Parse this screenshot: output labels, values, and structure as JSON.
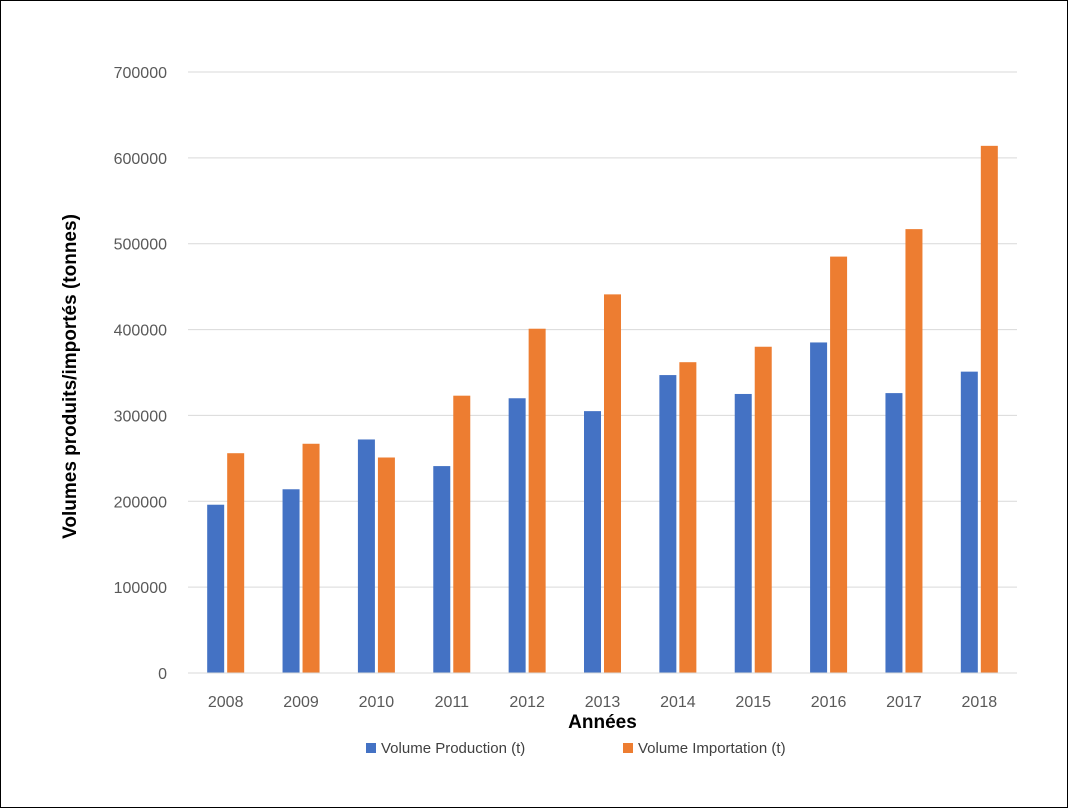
{
  "chart_data": {
    "type": "bar",
    "title": "",
    "xlabel": "Années",
    "ylabel": "Volumes produits/importés (tonnes)",
    "categories": [
      "2008",
      "2009",
      "2010",
      "2011",
      "2012",
      "2013",
      "2014",
      "2015",
      "2016",
      "2017",
      "2018"
    ],
    "series": [
      {
        "name": "Volume Production (t)",
        "color": "#4472C4",
        "values": [
          196000,
          214000,
          272000,
          241000,
          320000,
          305000,
          347000,
          325000,
          385000,
          326000,
          351000
        ]
      },
      {
        "name": "Volume Importation (t)",
        "color": "#ED7D31",
        "values": [
          256000,
          267000,
          251000,
          323000,
          401000,
          441000,
          362000,
          380000,
          485000,
          517000,
          614000
        ]
      }
    ],
    "ylim": [
      0,
      700000
    ],
    "yticks": [
      0,
      100000,
      200000,
      300000,
      400000,
      500000,
      600000,
      700000
    ],
    "grid": true,
    "gridcolor": "#D9D9D9",
    "legend": "bottom-center"
  }
}
